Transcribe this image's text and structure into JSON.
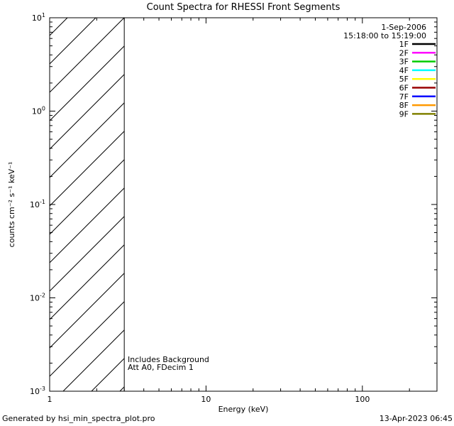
{
  "chart_data": {
    "type": "line",
    "title": "Count Spectra for RHESSI Front Segments",
    "xlabel": "Energy (keV)",
    "ylabel": "counts cm⁻² s⁻¹ keV⁻¹",
    "xscale": "log",
    "yscale": "log",
    "xlim": [
      1,
      300
    ],
    "ylim": [
      0.001,
      10
    ],
    "x_major_ticks": [
      1,
      10,
      100
    ],
    "x_tick_labels": [
      "1",
      "10",
      "100"
    ],
    "y_major_tick_exponents": [
      1,
      0,
      -1,
      -2,
      -3
    ],
    "series": [],
    "hatch_region": {
      "x_start": 1,
      "x_end": 3,
      "style": "diagonal-hatch"
    },
    "annotations": [
      "Includes Background",
      "Att A0, FDecim 1"
    ],
    "legend": {
      "position": "top-right",
      "date": "1-Sep-2006",
      "time_range": "15:18:00 to 15:19:00",
      "entries": [
        {
          "label": "1F",
          "color": "#000000"
        },
        {
          "label": "2F",
          "color": "#ff00ff"
        },
        {
          "label": "3F",
          "color": "#00cc00"
        },
        {
          "label": "4F",
          "color": "#00ffff"
        },
        {
          "label": "5F",
          "color": "#ffff00"
        },
        {
          "label": "6F",
          "color": "#990000"
        },
        {
          "label": "7F",
          "color": "#0000ff"
        },
        {
          "label": "8F",
          "color": "#ff9900"
        },
        {
          "label": "9F",
          "color": "#808000"
        }
      ]
    }
  },
  "footer": {
    "left": "Generated by hsi_min_spectra_plot.pro",
    "right": "13-Apr-2023 06:45"
  }
}
